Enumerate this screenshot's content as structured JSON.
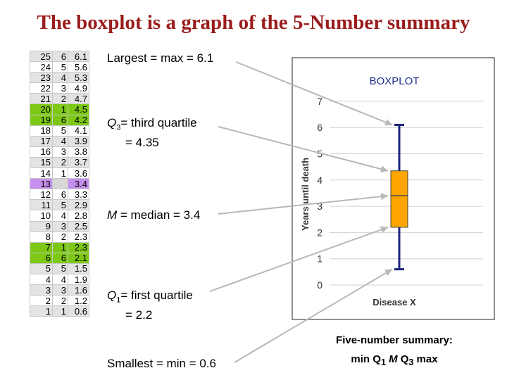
{
  "title": "The boxplot is a graph of the 5-Number summary",
  "table": {
    "rows": [
      [
        "25",
        "6",
        "6.1"
      ],
      [
        "24",
        "5",
        "5.6"
      ],
      [
        "23",
        "4",
        "5.3"
      ],
      [
        "22",
        "3",
        "4.9"
      ],
      [
        "21",
        "2",
        "4.7"
      ],
      [
        "20",
        "1",
        "4.5"
      ],
      [
        "19",
        "6",
        "4.2"
      ],
      [
        "18",
        "5",
        "4.1"
      ],
      [
        "17",
        "4",
        "3.9"
      ],
      [
        "16",
        "3",
        "3.8"
      ],
      [
        "15",
        "2",
        "3.7"
      ],
      [
        "14",
        "1",
        "3.6"
      ],
      [
        "13",
        "",
        "3.4"
      ],
      [
        "12",
        "6",
        "3.3"
      ],
      [
        "11",
        "5",
        "2.9"
      ],
      [
        "10",
        "4",
        "2.8"
      ],
      [
        "9",
        "3",
        "2.5"
      ],
      [
        "8",
        "2",
        "2.3"
      ],
      [
        "7",
        "1",
        "2.3"
      ],
      [
        "6",
        "6",
        "2.1"
      ],
      [
        "5",
        "5",
        "1.5"
      ],
      [
        "4",
        "4",
        "1.9"
      ],
      [
        "3",
        "3",
        "1.6"
      ],
      [
        "2",
        "2",
        "1.2"
      ],
      [
        "1",
        "1",
        "0.6"
      ]
    ]
  },
  "annotations": {
    "max": "Largest = max = 6.1",
    "q3_label": "Q",
    "q3_sub": "3",
    "q3_text": "= third quartile",
    "q3_value": "= 4.35",
    "median_m": "M",
    "median_text": " = median = 3.4",
    "q1_label": "Q",
    "q1_sub": "1",
    "q1_text": "= first quartile",
    "q1_value": "= 2.2",
    "min": "Smallest = min = 0.6"
  },
  "five_number": {
    "line1": "Five-number summary:",
    "min": "min Q",
    "sub1": "1",
    "m": "M",
    "q": "Q",
    "sub3": "3",
    "max": " max"
  },
  "colors": {
    "title": "#9b1c1c",
    "quartile_rows": "#7cc814",
    "median_row": "#c890ee",
    "box_fill": "#ffa500",
    "whisker": "#1a237e"
  },
  "chart_data": {
    "type": "boxplot",
    "title": "BOXPLOT",
    "xlabel": "Disease X",
    "ylabel": "Years until death",
    "ylim": [
      0,
      7
    ],
    "yticks": [
      "0",
      "1",
      "2",
      "3",
      "4",
      "5",
      "6",
      "7"
    ],
    "categories": [
      "Disease X"
    ],
    "grid": true,
    "boxes": [
      {
        "min": 0.6,
        "q1": 2.2,
        "median": 3.4,
        "q3": 4.35,
        "max": 6.1
      }
    ]
  }
}
